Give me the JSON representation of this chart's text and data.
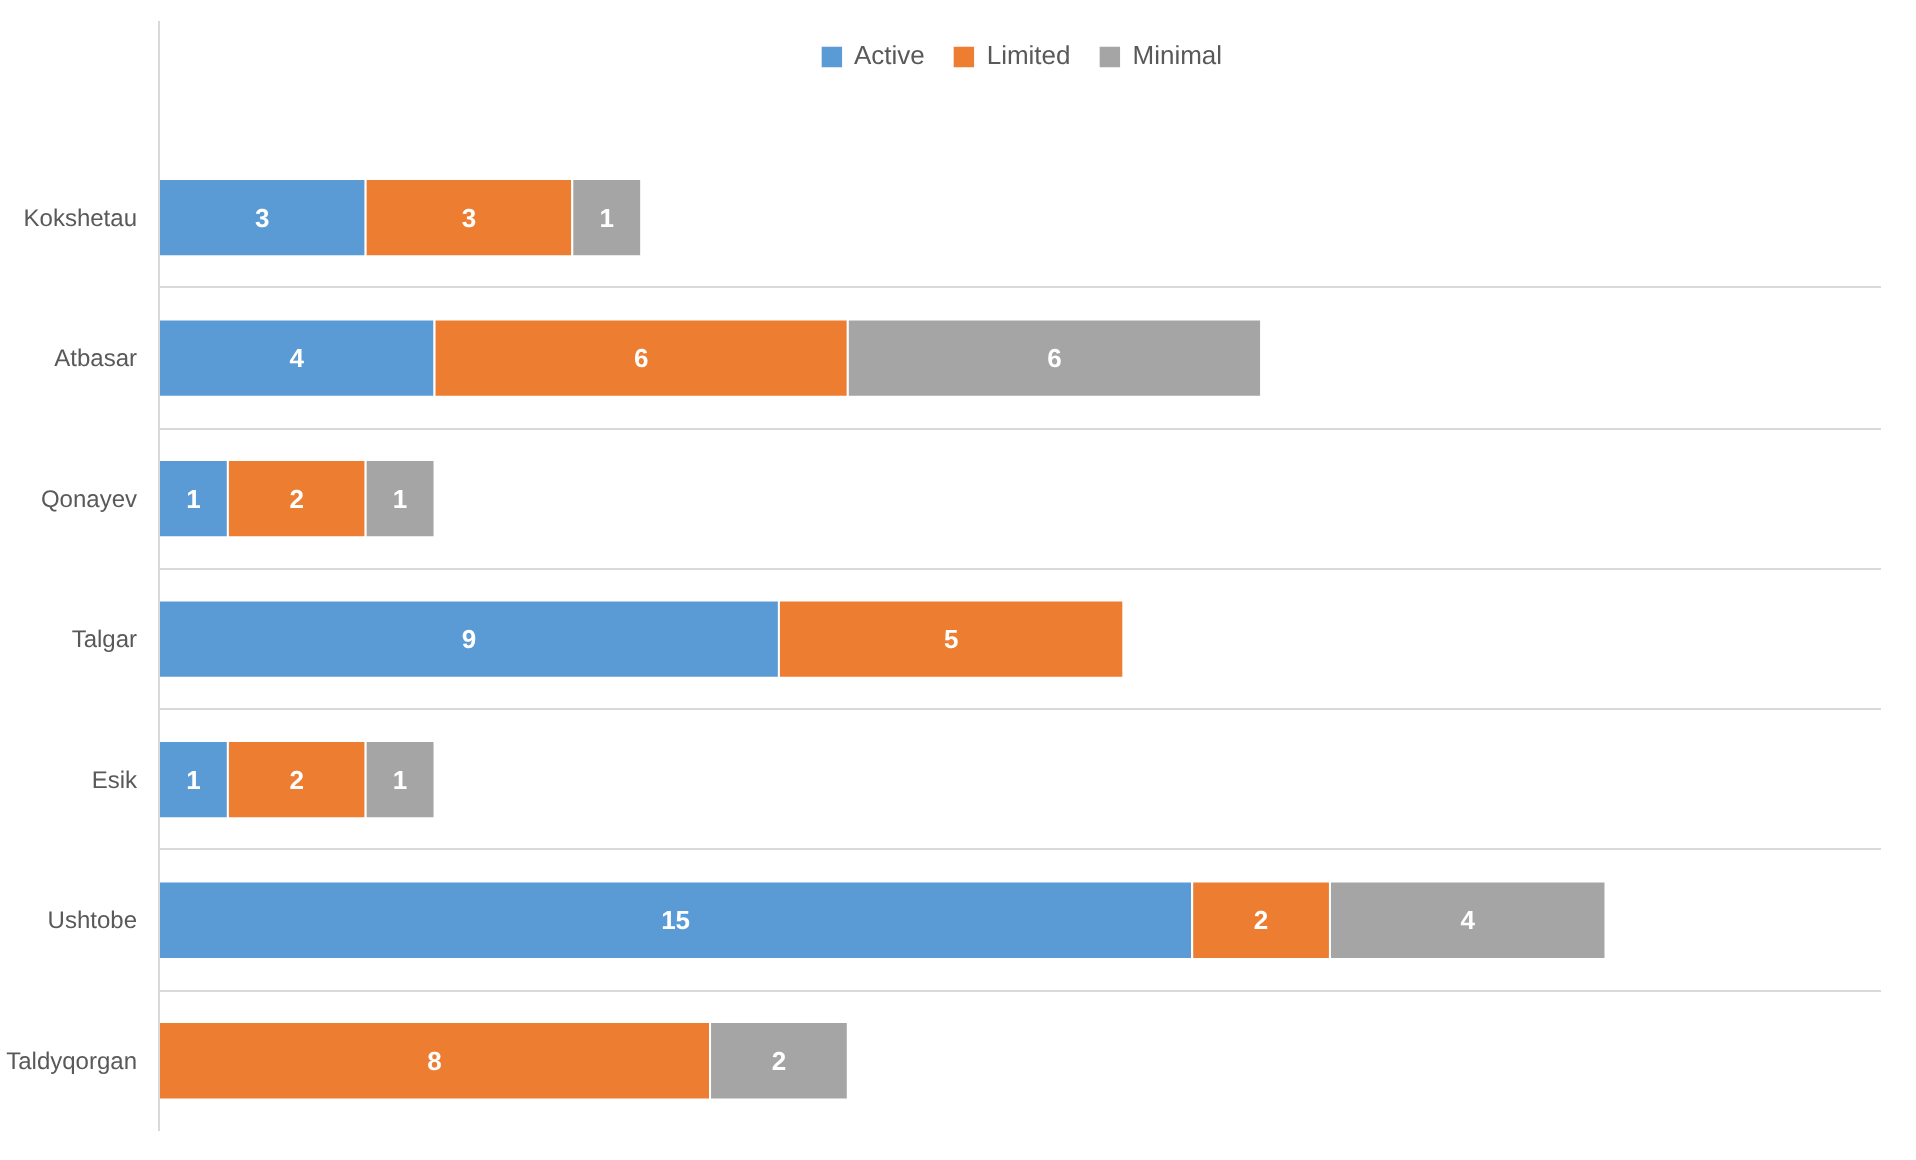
{
  "chart_data": {
    "type": "bar",
    "orientation": "horizontal",
    "stacked": true,
    "categories": [
      "Kokshetau",
      "Atbasar",
      "Qonayev",
      "Talgar",
      "Esik",
      "Ushtobe",
      "Taldyqorgan"
    ],
    "series": [
      {
        "name": "Active",
        "color": "#5b9bd5",
        "values": [
          3,
          4,
          1,
          9,
          1,
          15,
          null
        ]
      },
      {
        "name": "Limited",
        "color": "#ed7d31",
        "values": [
          3,
          6,
          2,
          5,
          2,
          2,
          8
        ]
      },
      {
        "name": "Minimal",
        "color": "#a5a5a5",
        "values": [
          1,
          6,
          1,
          null,
          1,
          4,
          2
        ]
      }
    ],
    "xlim": [
      0,
      25
    ],
    "data_labels": true,
    "legend": "top",
    "grid": "y",
    "tick_labels": "y"
  }
}
